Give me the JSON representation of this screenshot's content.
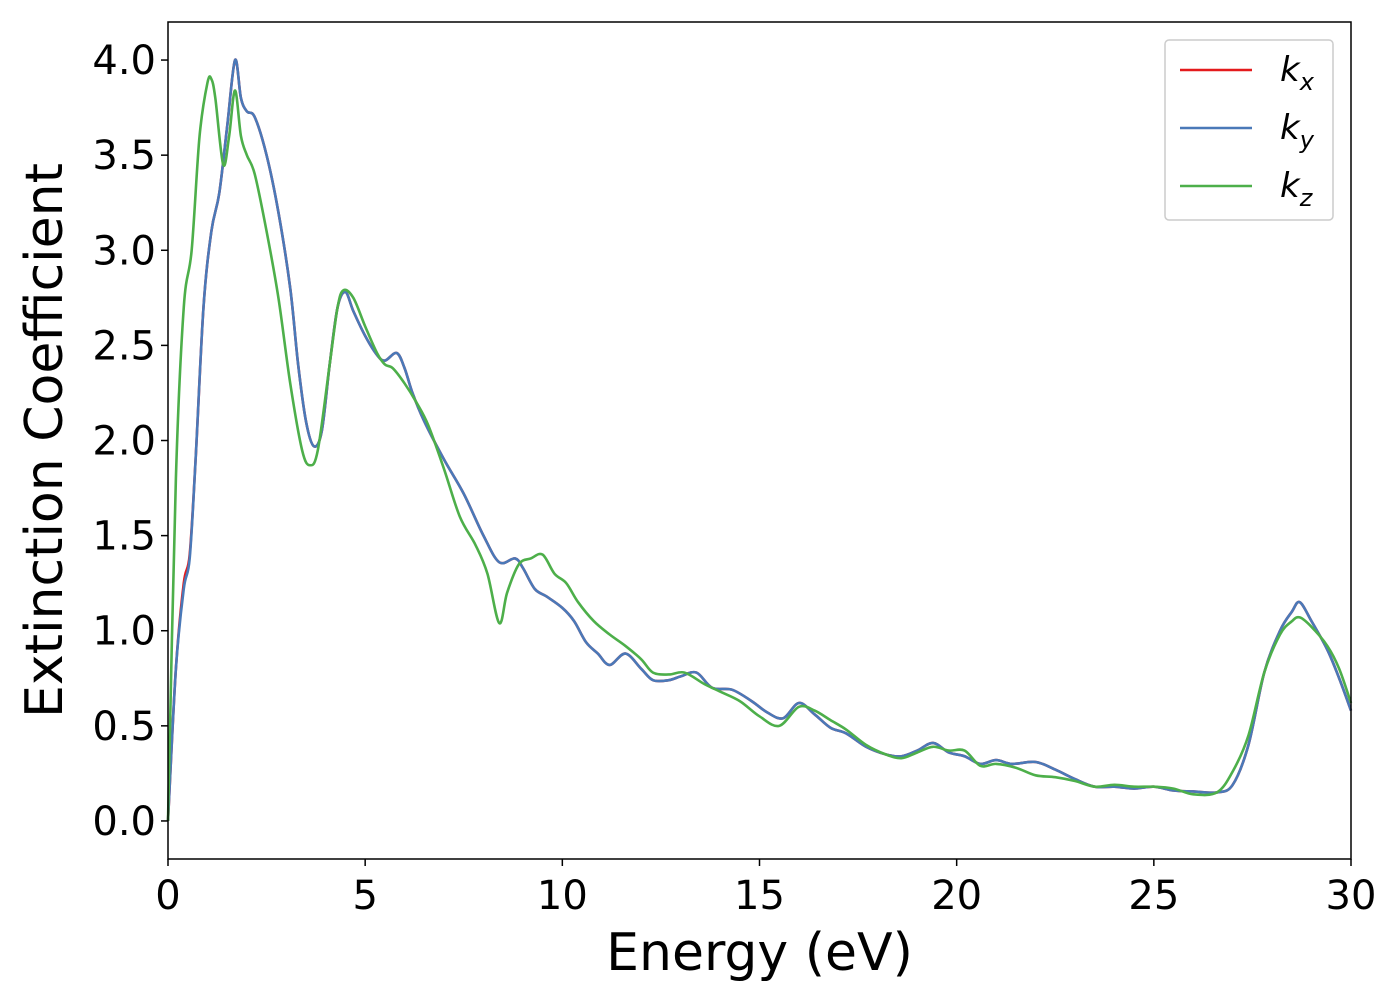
{
  "chart_data": {
    "type": "line",
    "title": "",
    "xlabel": "Energy (eV)",
    "ylabel": "Extinction Coefficient",
    "xlim": [
      0,
      30
    ],
    "ylim": [
      -0.2,
      4.2
    ],
    "xticks": [
      0,
      5,
      10,
      15,
      20,
      25,
      30
    ],
    "xtick_labels": [
      "0",
      "5",
      "10",
      "15",
      "20",
      "25",
      "30"
    ],
    "yticks": [
      0.0,
      0.5,
      1.0,
      1.5,
      2.0,
      2.5,
      3.0,
      3.5,
      4.0
    ],
    "ytick_labels": [
      "0.0",
      "0.5",
      "1.0",
      "1.5",
      "2.0",
      "2.5",
      "3.0",
      "3.5",
      "4.0"
    ],
    "grid": false,
    "legend_position": "top-right",
    "series": [
      {
        "name": "k_x",
        "label_base": "k",
        "label_sub": "x",
        "color": "#e41a1c",
        "points": [
          [
            0,
            0
          ],
          [
            0.2,
            0.8
          ],
          [
            0.4,
            1.25
          ],
          [
            0.55,
            1.4
          ],
          [
            0.7,
            1.9
          ],
          [
            0.9,
            2.7
          ],
          [
            1.1,
            3.1
          ],
          [
            1.3,
            3.3
          ],
          [
            1.5,
            3.65
          ],
          [
            1.7,
            4.0
          ],
          [
            1.85,
            3.8
          ],
          [
            2.0,
            3.73
          ],
          [
            2.2,
            3.7
          ],
          [
            2.5,
            3.5
          ],
          [
            2.8,
            3.2
          ],
          [
            3.1,
            2.8
          ],
          [
            3.3,
            2.4
          ],
          [
            3.5,
            2.1
          ],
          [
            3.7,
            1.97
          ],
          [
            3.9,
            2.05
          ],
          [
            4.1,
            2.4
          ],
          [
            4.3,
            2.7
          ],
          [
            4.5,
            2.78
          ],
          [
            4.7,
            2.68
          ],
          [
            5.0,
            2.55
          ],
          [
            5.3,
            2.45
          ],
          [
            5.5,
            2.42
          ],
          [
            5.8,
            2.46
          ],
          [
            6.0,
            2.38
          ],
          [
            6.2,
            2.25
          ],
          [
            6.5,
            2.1
          ],
          [
            7.0,
            1.9
          ],
          [
            7.5,
            1.72
          ],
          [
            8.0,
            1.5
          ],
          [
            8.4,
            1.36
          ],
          [
            8.8,
            1.38
          ],
          [
            9.0,
            1.33
          ],
          [
            9.3,
            1.22
          ],
          [
            9.6,
            1.18
          ],
          [
            10.0,
            1.12
          ],
          [
            10.3,
            1.05
          ],
          [
            10.6,
            0.94
          ],
          [
            10.9,
            0.88
          ],
          [
            11.2,
            0.82
          ],
          [
            11.6,
            0.88
          ],
          [
            12.0,
            0.8
          ],
          [
            12.3,
            0.74
          ],
          [
            12.7,
            0.74
          ],
          [
            13.0,
            0.76
          ],
          [
            13.4,
            0.78
          ],
          [
            13.8,
            0.7
          ],
          [
            14.3,
            0.69
          ],
          [
            14.8,
            0.63
          ],
          [
            15.2,
            0.57
          ],
          [
            15.6,
            0.54
          ],
          [
            16.0,
            0.62
          ],
          [
            16.4,
            0.56
          ],
          [
            16.8,
            0.49
          ],
          [
            17.2,
            0.46
          ],
          [
            17.7,
            0.39
          ],
          [
            18.2,
            0.35
          ],
          [
            18.6,
            0.34
          ],
          [
            19.0,
            0.37
          ],
          [
            19.4,
            0.41
          ],
          [
            19.8,
            0.36
          ],
          [
            20.2,
            0.34
          ],
          [
            20.6,
            0.3
          ],
          [
            21.0,
            0.32
          ],
          [
            21.4,
            0.3
          ],
          [
            22.0,
            0.31
          ],
          [
            22.5,
            0.27
          ],
          [
            23.0,
            0.22
          ],
          [
            23.5,
            0.18
          ],
          [
            24.0,
            0.18
          ],
          [
            24.5,
            0.17
          ],
          [
            25.0,
            0.18
          ],
          [
            25.5,
            0.16
          ],
          [
            26.0,
            0.155
          ],
          [
            26.6,
            0.15
          ],
          [
            27.0,
            0.19
          ],
          [
            27.4,
            0.4
          ],
          [
            27.8,
            0.78
          ],
          [
            28.2,
            1.0
          ],
          [
            28.5,
            1.1
          ],
          [
            28.7,
            1.15
          ],
          [
            29.0,
            1.05
          ],
          [
            29.4,
            0.9
          ],
          [
            29.7,
            0.75
          ],
          [
            30.0,
            0.58
          ]
        ]
      },
      {
        "name": "k_y",
        "label_base": "k",
        "label_sub": "y",
        "color": "#4a79b8",
        "points": [
          [
            0,
            0
          ],
          [
            0.2,
            0.8
          ],
          [
            0.4,
            1.22
          ],
          [
            0.55,
            1.38
          ],
          [
            0.7,
            1.9
          ],
          [
            0.9,
            2.7
          ],
          [
            1.1,
            3.1
          ],
          [
            1.3,
            3.3
          ],
          [
            1.5,
            3.65
          ],
          [
            1.7,
            4.0
          ],
          [
            1.85,
            3.8
          ],
          [
            2.0,
            3.73
          ],
          [
            2.2,
            3.7
          ],
          [
            2.5,
            3.5
          ],
          [
            2.8,
            3.2
          ],
          [
            3.1,
            2.8
          ],
          [
            3.3,
            2.4
          ],
          [
            3.5,
            2.1
          ],
          [
            3.7,
            1.97
          ],
          [
            3.9,
            2.05
          ],
          [
            4.1,
            2.4
          ],
          [
            4.3,
            2.7
          ],
          [
            4.5,
            2.78
          ],
          [
            4.7,
            2.68
          ],
          [
            5.0,
            2.55
          ],
          [
            5.3,
            2.45
          ],
          [
            5.5,
            2.42
          ],
          [
            5.8,
            2.46
          ],
          [
            6.0,
            2.38
          ],
          [
            6.2,
            2.25
          ],
          [
            6.5,
            2.1
          ],
          [
            7.0,
            1.9
          ],
          [
            7.5,
            1.72
          ],
          [
            8.0,
            1.5
          ],
          [
            8.4,
            1.36
          ],
          [
            8.8,
            1.38
          ],
          [
            9.0,
            1.33
          ],
          [
            9.3,
            1.22
          ],
          [
            9.6,
            1.18
          ],
          [
            10.0,
            1.12
          ],
          [
            10.3,
            1.05
          ],
          [
            10.6,
            0.94
          ],
          [
            10.9,
            0.88
          ],
          [
            11.2,
            0.82
          ],
          [
            11.6,
            0.88
          ],
          [
            12.0,
            0.8
          ],
          [
            12.3,
            0.74
          ],
          [
            12.7,
            0.74
          ],
          [
            13.0,
            0.76
          ],
          [
            13.4,
            0.78
          ],
          [
            13.8,
            0.7
          ],
          [
            14.3,
            0.69
          ],
          [
            14.8,
            0.63
          ],
          [
            15.2,
            0.57
          ],
          [
            15.6,
            0.54
          ],
          [
            16.0,
            0.62
          ],
          [
            16.4,
            0.56
          ],
          [
            16.8,
            0.49
          ],
          [
            17.2,
            0.46
          ],
          [
            17.7,
            0.39
          ],
          [
            18.2,
            0.35
          ],
          [
            18.6,
            0.34
          ],
          [
            19.0,
            0.37
          ],
          [
            19.4,
            0.41
          ],
          [
            19.8,
            0.36
          ],
          [
            20.2,
            0.34
          ],
          [
            20.6,
            0.3
          ],
          [
            21.0,
            0.32
          ],
          [
            21.4,
            0.3
          ],
          [
            22.0,
            0.31
          ],
          [
            22.5,
            0.27
          ],
          [
            23.0,
            0.22
          ],
          [
            23.5,
            0.18
          ],
          [
            24.0,
            0.18
          ],
          [
            24.5,
            0.17
          ],
          [
            25.0,
            0.18
          ],
          [
            25.5,
            0.16
          ],
          [
            26.0,
            0.155
          ],
          [
            26.6,
            0.15
          ],
          [
            27.0,
            0.19
          ],
          [
            27.4,
            0.4
          ],
          [
            27.8,
            0.78
          ],
          [
            28.2,
            1.0
          ],
          [
            28.5,
            1.1
          ],
          [
            28.7,
            1.15
          ],
          [
            29.0,
            1.05
          ],
          [
            29.4,
            0.9
          ],
          [
            29.7,
            0.75
          ],
          [
            30.0,
            0.58
          ]
        ]
      },
      {
        "name": "k_z",
        "label_base": "k",
        "label_sub": "z",
        "color": "#4daf4a",
        "points": [
          [
            0,
            0
          ],
          [
            0.2,
            1.8
          ],
          [
            0.4,
            2.7
          ],
          [
            0.6,
            3.0
          ],
          [
            0.8,
            3.6
          ],
          [
            1.0,
            3.88
          ],
          [
            1.1,
            3.9
          ],
          [
            1.2,
            3.8
          ],
          [
            1.4,
            3.45
          ],
          [
            1.55,
            3.6
          ],
          [
            1.7,
            3.84
          ],
          [
            1.85,
            3.6
          ],
          [
            2.0,
            3.5
          ],
          [
            2.2,
            3.4
          ],
          [
            2.5,
            3.1
          ],
          [
            2.8,
            2.75
          ],
          [
            3.1,
            2.3
          ],
          [
            3.4,
            1.95
          ],
          [
            3.6,
            1.87
          ],
          [
            3.8,
            1.95
          ],
          [
            4.1,
            2.4
          ],
          [
            4.3,
            2.7
          ],
          [
            4.45,
            2.79
          ],
          [
            4.7,
            2.75
          ],
          [
            5.0,
            2.6
          ],
          [
            5.3,
            2.46
          ],
          [
            5.5,
            2.4
          ],
          [
            5.7,
            2.38
          ],
          [
            6.0,
            2.3
          ],
          [
            6.3,
            2.2
          ],
          [
            6.6,
            2.08
          ],
          [
            7.0,
            1.85
          ],
          [
            7.4,
            1.6
          ],
          [
            7.8,
            1.45
          ],
          [
            8.1,
            1.3
          ],
          [
            8.4,
            1.04
          ],
          [
            8.6,
            1.2
          ],
          [
            8.9,
            1.35
          ],
          [
            9.2,
            1.38
          ],
          [
            9.5,
            1.4
          ],
          [
            9.8,
            1.3
          ],
          [
            10.1,
            1.25
          ],
          [
            10.4,
            1.15
          ],
          [
            10.8,
            1.05
          ],
          [
            11.2,
            0.98
          ],
          [
            11.6,
            0.92
          ],
          [
            12.0,
            0.85
          ],
          [
            12.3,
            0.78
          ],
          [
            12.7,
            0.77
          ],
          [
            13.1,
            0.78
          ],
          [
            13.6,
            0.72
          ],
          [
            14.0,
            0.68
          ],
          [
            14.5,
            0.63
          ],
          [
            15.0,
            0.55
          ],
          [
            15.5,
            0.5
          ],
          [
            16.0,
            0.6
          ],
          [
            16.4,
            0.58
          ],
          [
            16.8,
            0.53
          ],
          [
            17.2,
            0.48
          ],
          [
            17.7,
            0.4
          ],
          [
            18.2,
            0.35
          ],
          [
            18.6,
            0.33
          ],
          [
            19.0,
            0.36
          ],
          [
            19.4,
            0.39
          ],
          [
            19.8,
            0.37
          ],
          [
            20.2,
            0.37
          ],
          [
            20.6,
            0.29
          ],
          [
            21.0,
            0.3
          ],
          [
            21.5,
            0.28
          ],
          [
            22.0,
            0.24
          ],
          [
            22.5,
            0.23
          ],
          [
            23.0,
            0.21
          ],
          [
            23.5,
            0.18
          ],
          [
            24.0,
            0.19
          ],
          [
            24.5,
            0.18
          ],
          [
            25.0,
            0.18
          ],
          [
            25.5,
            0.17
          ],
          [
            26.0,
            0.14
          ],
          [
            26.6,
            0.15
          ],
          [
            27.0,
            0.26
          ],
          [
            27.4,
            0.45
          ],
          [
            27.8,
            0.78
          ],
          [
            28.2,
            0.98
          ],
          [
            28.5,
            1.05
          ],
          [
            28.7,
            1.07
          ],
          [
            29.0,
            1.02
          ],
          [
            29.4,
            0.92
          ],
          [
            29.7,
            0.8
          ],
          [
            30.0,
            0.62
          ]
        ]
      }
    ]
  }
}
